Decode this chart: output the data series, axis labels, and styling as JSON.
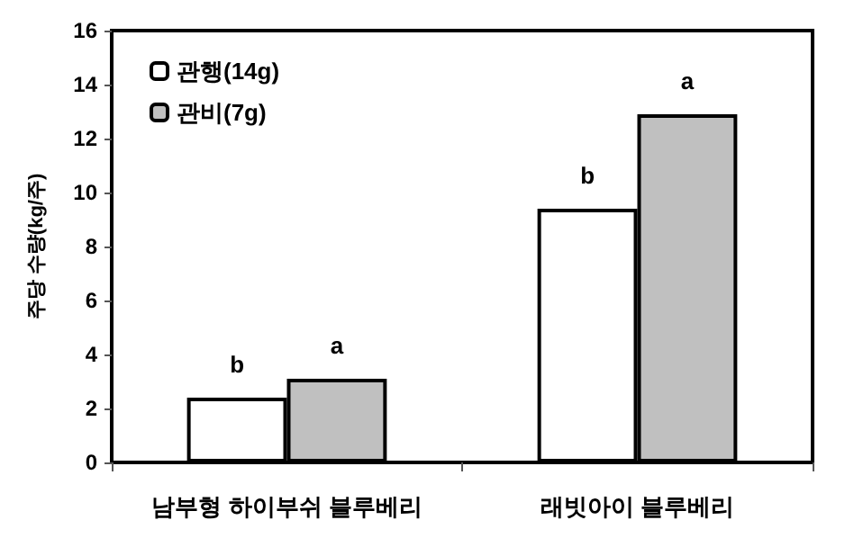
{
  "chart_data": {
    "type": "bar",
    "ylabel": "주당 수량(kg/주)",
    "categories": [
      "남부형 하이부쉬 블루베리",
      "래빗아이 블루베리"
    ],
    "series": [
      {
        "name": "관행(14g)",
        "color": "#ffffff",
        "values": [
          2.4,
          9.4
        ]
      },
      {
        "name": "관비(7g)",
        "color": "#c0c0c0",
        "values": [
          3.1,
          12.9
        ]
      }
    ],
    "ylim": [
      0,
      16
    ],
    "yticks": [
      0,
      2,
      4,
      6,
      8,
      10,
      12,
      14,
      16
    ],
    "grid": false,
    "legend": "top left",
    "annotations": [
      {
        "text": "b",
        "x": "남부형 하이부쉬 블루베리",
        "y": 2.4
      },
      {
        "text": "a",
        "x": "남부형 하이부쉬 블루베리",
        "y": 3.1
      },
      {
        "text": "b",
        "x": "래빗아이 블루베리",
        "y": 9.4
      },
      {
        "text": "a",
        "x": "래빗아이 블루베리",
        "y": 12.9
      }
    ]
  }
}
